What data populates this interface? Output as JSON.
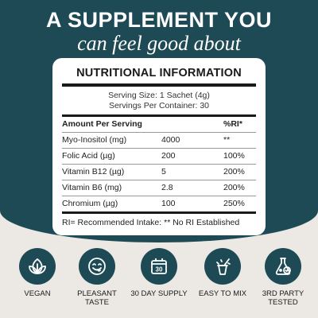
{
  "header": {
    "headline": "A SUPPLEMENT YOU",
    "subhead": "can feel good about"
  },
  "panel": {
    "title": "NUTRITIONAL INFORMATION",
    "serving_size": "Serving Size: 1 Sachet (4g)",
    "servings_per_container": "Servings Per Container: 30",
    "col_amount": "Amount Per Serving",
    "col_ri": "%RI*",
    "rows": [
      {
        "name": "Myo-Inositol (mg)",
        "amount": "4000",
        "ri": "**"
      },
      {
        "name": "Folic Acid (µg)",
        "amount": "200",
        "ri": "100%"
      },
      {
        "name": "Vitamin B12 (µg)",
        "amount": "5",
        "ri": "200%"
      },
      {
        "name": "Vitamin B6 (mg)",
        "amount": "2.8",
        "ri": "200%"
      },
      {
        "name": "Chromium (µg)",
        "amount": "100",
        "ri": "250%"
      }
    ],
    "footnote": "RI= Recommended Intake: ** No RI Established"
  },
  "badges": [
    {
      "icon": "leaf-icon",
      "label": "VEGAN"
    },
    {
      "icon": "smiley-icon",
      "label": "PLEASANT TASTE"
    },
    {
      "icon": "calendar-icon",
      "label": "30 DAY SUPPLY",
      "icon_text": "30"
    },
    {
      "icon": "cup-mix-icon",
      "label": "EASY TO MIX"
    },
    {
      "icon": "flask-check-icon",
      "label": "3RD PARTY TESTED"
    }
  ],
  "colors": {
    "brand_teal": "#1e4a55",
    "background": "#ece9e4",
    "panel": "#ffffff"
  }
}
